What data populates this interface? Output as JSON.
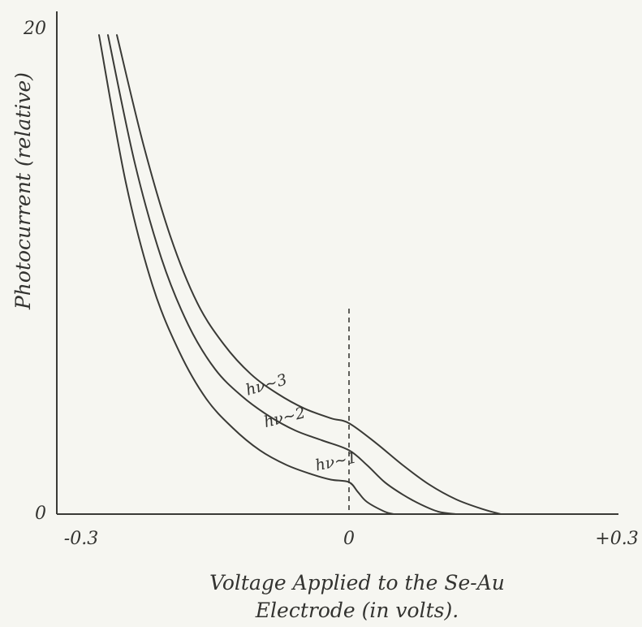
{
  "chart_data": {
    "type": "line",
    "ylabel": "Photocurrent (relative)",
    "xlabel_line1": "Voltage Applied to the Se-Au",
    "xlabel_line2": "Electrode (in volts).",
    "xlim": [
      -0.3,
      0.3
    ],
    "ylim": [
      0,
      20
    ],
    "x_ticks": [
      {
        "value": -0.3,
        "label": "-0.3"
      },
      {
        "value": 0,
        "label": "0"
      },
      {
        "value": 0.3,
        "label": "+0.3"
      }
    ],
    "y_ticks": [
      {
        "value": 0,
        "label": "0"
      },
      {
        "value": 20,
        "label": "20"
      }
    ],
    "reference_line_x": 0,
    "series": [
      {
        "name": "hν~1",
        "x": [
          -0.28,
          -0.25,
          -0.22,
          -0.19,
          -0.16,
          -0.13,
          -0.1,
          -0.07,
          -0.04,
          -0.02,
          0.0,
          0.01,
          0.02,
          0.04,
          0.05
        ],
        "y": [
          19.5,
          13.5,
          9.3,
          6.6,
          4.7,
          3.5,
          2.6,
          2.0,
          1.6,
          1.4,
          1.3,
          0.9,
          0.5,
          0.1,
          0.0
        ]
      },
      {
        "name": "hν~2",
        "x": [
          -0.27,
          -0.24,
          -0.21,
          -0.18,
          -0.15,
          -0.12,
          -0.09,
          -0.06,
          -0.03,
          0.0,
          0.02,
          0.04,
          0.06,
          0.08,
          0.1,
          0.12
        ],
        "y": [
          19.5,
          14.3,
          10.4,
          7.7,
          5.9,
          4.8,
          4.0,
          3.4,
          3.0,
          2.6,
          2.0,
          1.3,
          0.8,
          0.4,
          0.1,
          0.0
        ]
      },
      {
        "name": "hν~3",
        "x": [
          -0.26,
          -0.23,
          -0.2,
          -0.17,
          -0.14,
          -0.11,
          -0.08,
          -0.05,
          -0.02,
          0.0,
          0.03,
          0.06,
          0.09,
          0.12,
          0.15,
          0.17
        ],
        "y": [
          19.5,
          15.0,
          11.3,
          8.6,
          6.9,
          5.7,
          4.9,
          4.3,
          3.9,
          3.7,
          2.9,
          2.0,
          1.2,
          0.6,
          0.2,
          0.0
        ]
      }
    ]
  }
}
